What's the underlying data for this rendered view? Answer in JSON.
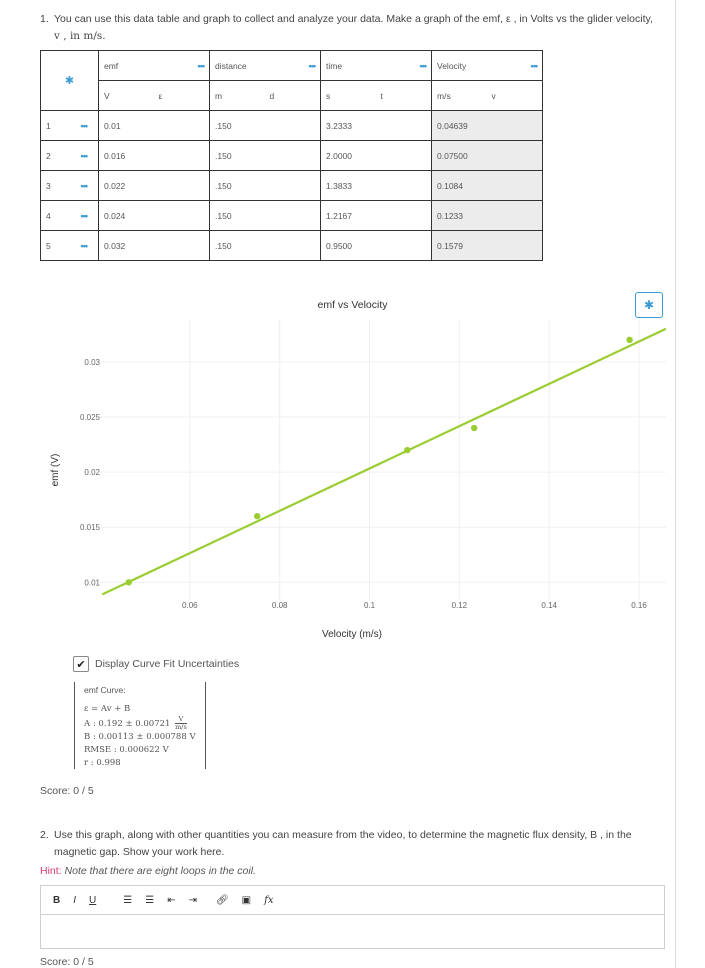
{
  "q1": {
    "number": "1.",
    "text_line1": "You can use this data table and graph to collect and analyze your data. Make a graph of the emf, ε , in Volts vs the glider velocity,",
    "text_line2": "v , in m/s."
  },
  "table": {
    "header_icon": "gear-icon",
    "columns": [
      {
        "name": "emf",
        "unit": "V",
        "symbol": "ε"
      },
      {
        "name": "distance",
        "unit": "m",
        "symbol": "d"
      },
      {
        "name": "time",
        "unit": "s",
        "symbol": "t"
      },
      {
        "name": "Velocity",
        "unit": "m/s",
        "symbol": "v"
      }
    ],
    "rows": [
      {
        "index": "1",
        "emf": "0.01",
        "distance": ".150",
        "time": "3.2333",
        "velocity": "0.04639"
      },
      {
        "index": "2",
        "emf": "0.016",
        "distance": ".150",
        "time": "2.0000",
        "velocity": "0.07500"
      },
      {
        "index": "3",
        "emf": "0.022",
        "distance": ".150",
        "time": "1.3833",
        "velocity": "0.1084"
      },
      {
        "index": "4",
        "emf": "0.024",
        "distance": ".150",
        "time": "1.2167",
        "velocity": "0.1233"
      },
      {
        "index": "5",
        "emf": "0.032",
        "distance": ".150",
        "time": "0.9500",
        "velocity": "0.1579"
      }
    ]
  },
  "chart_data": {
    "type": "scatter",
    "title": "emf vs Velocity",
    "xlabel": "Velocity (m/s)",
    "ylabel": "emf (V)",
    "xlim": [
      0.04,
      0.166
    ],
    "ylim": [
      0.0084,
      0.0338
    ],
    "xticks": [
      "0.06",
      "0.08",
      "0.1",
      "0.12",
      "0.14",
      "0.16"
    ],
    "yticks": [
      "0.01",
      "0.015",
      "0.02",
      "0.025",
      "0.03"
    ],
    "x": [
      0.04639,
      0.075,
      0.1084,
      0.1233,
      0.1579
    ],
    "y": [
      0.01,
      0.016,
      0.022,
      0.024,
      0.032
    ],
    "fit": {
      "slope": 0.192,
      "intercept": 0.00113
    },
    "grid": true,
    "color": "#9acd32"
  },
  "display_uncertainties": {
    "label": "Display Curve Fit Uncertainties",
    "checked": true
  },
  "fit_box": {
    "title": "emf Curve:",
    "equation": "ε = Av + B",
    "A": "A : 0.192 ± 0.00721",
    "A_unit_num": "V",
    "A_unit_den": "m/s",
    "B": "B : 0.00113 ± 0.000788 V",
    "RMSE": "RMSE : 0.000622 V",
    "r": "r : 0.998"
  },
  "score1": "Score:  0 / 5",
  "q2": {
    "number": "2.",
    "text_line1": "Use this graph, along with other quantities you can measure from the video, to determine the magnetic flux density, B , in the",
    "text_line2": "magnetic gap. Show your work here."
  },
  "hint": {
    "label": "Hint:",
    "text": "Note that there are eight loops in the coil."
  },
  "toolbar": {
    "bold": "B",
    "italic": "I",
    "underline": "U",
    "formula": "fx"
  },
  "score2": "Score:  0 / 5",
  "colors": {
    "accent": "#3a9bd5",
    "series": "#9acd32",
    "hint": "#d23a6e"
  }
}
